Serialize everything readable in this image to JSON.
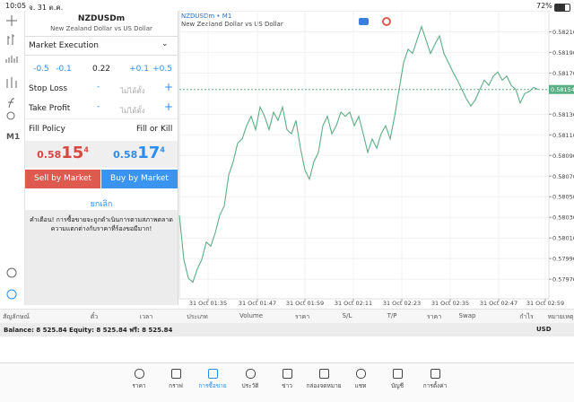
{
  "status": {
    "time": "10:05",
    "date": "จ. 31 ต.ค.",
    "battery": "72%"
  },
  "toolbar": {
    "timeframe": "M1"
  },
  "order": {
    "symbol": "NZDUSDm",
    "description": "New Zealand Dollar vs US Dollar",
    "execution": "Market Execution",
    "steps": [
      "-0.5",
      "-0.1",
      "+0.1",
      "+0.5"
    ],
    "volume": "0.22",
    "stop_loss": {
      "label": "Stop Loss",
      "minus": "-",
      "value": "ไม่ได้ตั้ง",
      "plus": "+"
    },
    "take_profit": {
      "label": "Take Profit",
      "minus": "-",
      "value": "ไม่ได้ตั้ง",
      "plus": "+"
    },
    "fill_policy": {
      "label": "Fill Policy",
      "value": "Fill or Kill"
    },
    "bid": {
      "head": "0.58",
      "main": "15",
      "tail": "4"
    },
    "ask": {
      "head": "0.58",
      "main": "17",
      "tail": "4"
    },
    "sell": "Sell by Market",
    "buy": "Buy by Market",
    "cancel": "ยกเลิก",
    "warning": [
      "คำเตือน! การซื้อขายจะถูกดำเนินการตามสภาพตลาด",
      "ความแตกต่างกับราคาที่ร้องขอมีมาก!"
    ]
  },
  "chart_data": {
    "type": "line",
    "title": "NZDUSDm • M1",
    "subtitle": "New Zealand Dollar vs US Dollar",
    "color": "#5cae86",
    "grid": true,
    "values": [
      0.58032,
      0.57989,
      0.57971,
      0.57967,
      0.5798,
      0.57989,
      0.58006,
      0.58002,
      0.58015,
      0.58032,
      0.58041,
      0.58071,
      0.58084,
      0.58102,
      0.58106,
      0.58119,
      0.58128,
      0.58115,
      0.58137,
      0.58128,
      0.58115,
      0.58132,
      0.58124,
      0.58137,
      0.58115,
      0.58111,
      0.58124,
      0.58097,
      0.58076,
      0.58067,
      0.58084,
      0.58093,
      0.58119,
      0.58128,
      0.58111,
      0.58119,
      0.58132,
      0.58128,
      0.58132,
      0.58119,
      0.58128,
      0.58111,
      0.58093,
      0.58106,
      0.58097,
      0.58111,
      0.58119,
      0.58106,
      0.58128,
      0.58154,
      0.5818,
      0.58193,
      0.58189,
      0.58202,
      0.58215,
      0.58202,
      0.58189,
      0.58198,
      0.58206,
      0.58189,
      0.5818,
      0.58171,
      0.58163,
      0.58154,
      0.58145,
      0.58138,
      0.58144,
      0.58154,
      0.58163,
      0.58158,
      0.58167,
      0.58171,
      0.58163,
      0.58167,
      0.58158,
      0.58154,
      0.58141,
      0.5815,
      0.58152,
      0.58156,
      0.58154
    ],
    "xlim": [
      0,
      82.4
    ],
    "xticks": [
      {
        "value": 6.4,
        "label": "31 Oct 01:35"
      },
      {
        "value": 17.4,
        "label": "31 Oct 01:47"
      },
      {
        "value": 28,
        "label": "31 Oct 01:59"
      },
      {
        "value": 38.8,
        "label": "31 Oct 02:11"
      },
      {
        "value": 49.6,
        "label": "31 Oct 02:23"
      },
      {
        "value": 60.4,
        "label": "31 Oct 02:35"
      },
      {
        "value": 71.2,
        "label": "31 Oct 02:47"
      },
      {
        "value": 81.6,
        "label": "31 Oct 02:59"
      }
    ],
    "ylim": [
      0.57951,
      0.58226
    ],
    "yticks": [
      {
        "value": 0.5821,
        "label": "0.58210"
      },
      {
        "value": 0.5819,
        "label": "0.58190"
      },
      {
        "value": 0.5817,
        "label": "0.58170"
      },
      {
        "value": 0.5813,
        "label": "0.58130"
      },
      {
        "value": 0.5811,
        "label": "0.58110"
      },
      {
        "value": 0.5809,
        "label": "0.58090"
      },
      {
        "value": 0.5807,
        "label": "0.58070"
      },
      {
        "value": 0.5805,
        "label": "0.58050"
      },
      {
        "value": 0.5803,
        "label": "0.58030"
      },
      {
        "value": 0.5801,
        "label": "0.58010"
      },
      {
        "value": 0.5799,
        "label": "0.57990"
      },
      {
        "value": 0.5797,
        "label": "0.57970"
      }
    ],
    "current_price": 0.58154
  },
  "table": {
    "headers": [
      "สัญลักษณ์",
      "ตั๋ว",
      "เวลา",
      "ประเภท",
      "Volume",
      "ราคา",
      "S/L",
      "T/P",
      "ราคา",
      "Swap",
      "กำไร",
      "หมายเหตุ"
    ]
  },
  "balance": {
    "text": "Balance: 8 525.84 Equity: 8 525.84 ฟรี: 8 525.84",
    "currency": "USD"
  },
  "tabs": [
    "ราคา",
    "กราฟ",
    "การซื้อขาย",
    "ประวัติ",
    "ข่าว",
    "กล่องจดหมาย",
    "แชท",
    "บัญชี",
    "การตั้งค่า"
  ]
}
